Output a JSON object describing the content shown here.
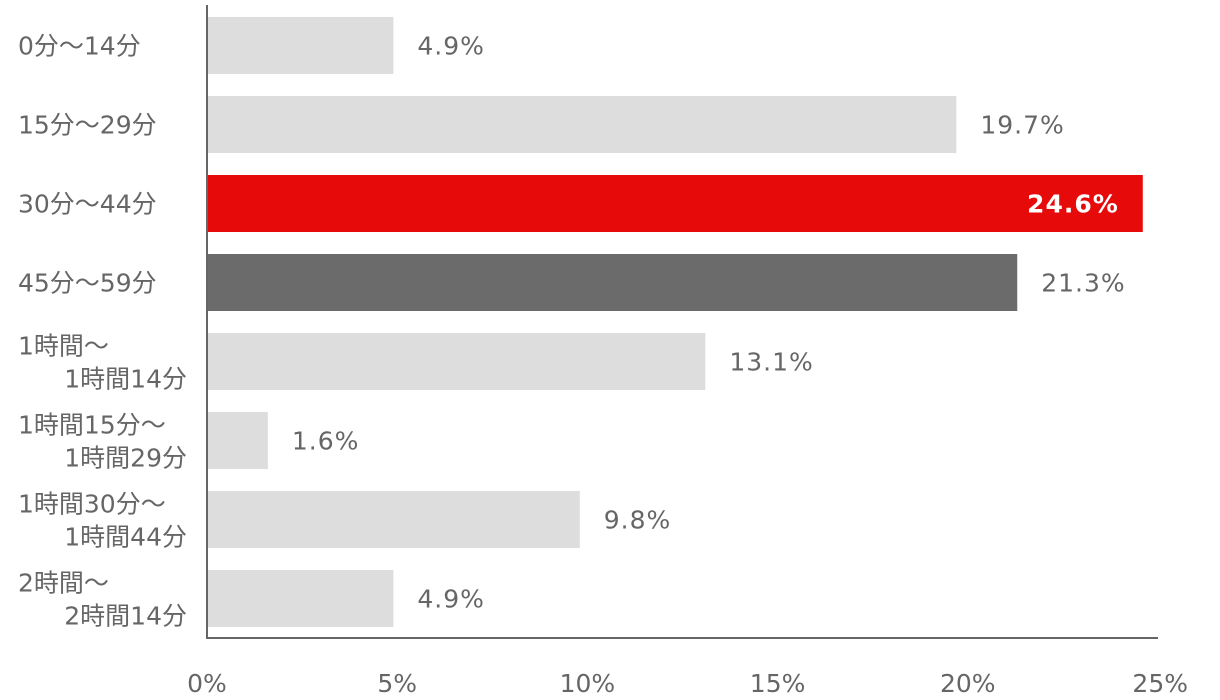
{
  "chart_data": {
    "type": "bar",
    "orientation": "horizontal",
    "categories": [
      [
        "0分〜14分"
      ],
      [
        "15分〜29分"
      ],
      [
        "30分〜44分"
      ],
      [
        "45分〜59分"
      ],
      [
        "1時間〜",
        "1時間14分"
      ],
      [
        "1時間15分〜",
        "1時間29分"
      ],
      [
        "1時間30分〜",
        "1時間44分"
      ],
      [
        "2時間〜",
        "2時間14分"
      ]
    ],
    "values": [
      4.9,
      19.7,
      24.6,
      21.3,
      13.1,
      1.6,
      9.8,
      4.9
    ],
    "value_labels": [
      "4.9%",
      "19.7%",
      "24.6%",
      "21.3%",
      "13.1%",
      "1.6%",
      "9.8%",
      "4.9%"
    ],
    "bar_colors": [
      "#dddddd",
      "#dddddd",
      "#e60a0a",
      "#6b6b6b",
      "#dddddd",
      "#dddddd",
      "#dddddd",
      "#dddddd"
    ],
    "label_inside": [
      false,
      false,
      true,
      false,
      false,
      false,
      false,
      false
    ],
    "xlim": [
      0,
      25
    ],
    "x_ticks": [
      0,
      5,
      10,
      15,
      20,
      25
    ],
    "x_tick_labels": [
      "0%",
      "5%",
      "10%",
      "15%",
      "20%",
      "25%"
    ],
    "axis_color": "#666666",
    "grid": false,
    "legend": "none"
  }
}
